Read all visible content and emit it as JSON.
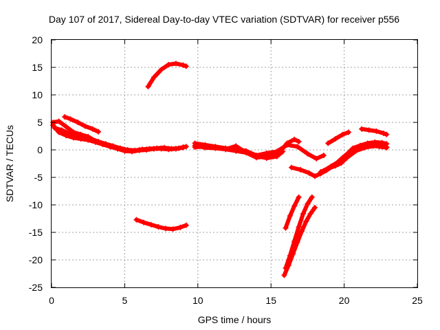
{
  "chart_data": {
    "type": "line",
    "title": "Day 107 of 2017, Sidereal Day-to-day VTEC variation (SDTVAR) for receiver p556",
    "xlabel": "GPS time / hours",
    "ylabel": "SDTVAR / TECUs",
    "xlim": [
      0,
      25
    ],
    "ylim": [
      -25,
      20
    ],
    "xticks": [
      "0",
      "5",
      "10",
      "15",
      "20",
      "25"
    ],
    "yticks": [
      "-25",
      "-20",
      "-15",
      "-10",
      "-5",
      "0",
      "5",
      "10",
      "15",
      "20"
    ],
    "grid": true,
    "color": "#ff0000",
    "series": [
      {
        "x": [
          0.1,
          0.5,
          1.0,
          1.5,
          2.0,
          2.5,
          3.0,
          3.5,
          4.0,
          4.5,
          5.0,
          5.5,
          6.0,
          6.5,
          7.0,
          7.5,
          8.0,
          8.5,
          9.0
        ],
        "y": [
          4.5,
          3.2,
          2.6,
          2.2,
          2.0,
          1.8,
          1.4,
          1.0,
          0.6,
          0.2,
          -0.2,
          -0.3,
          -0.1,
          0.0,
          0.2,
          0.3,
          0.2,
          0.2,
          0.4
        ]
      },
      {
        "x": [
          0.1,
          0.5,
          1.0,
          1.5,
          2.0,
          2.5,
          3.0,
          3.5,
          4.0,
          4.5,
          5.0,
          5.5,
          6.0,
          6.5,
          7.0,
          7.5,
          8.0,
          8.5,
          9.0
        ],
        "y": [
          5.0,
          5.2,
          4.2,
          3.2,
          2.8,
          2.4,
          1.6,
          1.0,
          0.6,
          0.2,
          -0.1,
          -0.2,
          0.0,
          0.1,
          0.2,
          0.2,
          0.1,
          0.2,
          0.5
        ]
      },
      {
        "x": [
          0.2,
          0.7,
          1.2,
          1.7,
          2.2,
          2.7,
          3.2,
          3.7,
          4.2,
          4.7,
          5.2,
          5.7,
          6.2,
          6.7,
          7.2,
          7.7,
          8.2,
          8.7,
          9.2
        ],
        "y": [
          4.0,
          3.6,
          3.0,
          2.6,
          2.3,
          2.0,
          1.5,
          1.1,
          0.7,
          0.3,
          0.0,
          -0.1,
          0.1,
          0.2,
          0.3,
          0.4,
          0.2,
          0.3,
          0.6
        ]
      },
      {
        "x": [
          0.9,
          1.3,
          1.8,
          2.3,
          2.8,
          3.2
        ],
        "y": [
          6.0,
          5.6,
          5.0,
          4.3,
          3.8,
          3.3
        ]
      },
      {
        "x": [
          6.6,
          7.0,
          7.5,
          8.0,
          8.5,
          9.0,
          9.2
        ],
        "y": [
          11.5,
          13.2,
          14.6,
          15.5,
          15.7,
          15.4,
          15.2
        ]
      },
      {
        "x": [
          5.8,
          6.3,
          6.8,
          7.3,
          7.8,
          8.3,
          8.8,
          9.2
        ],
        "y": [
          -12.7,
          -13.2,
          -13.6,
          -14.0,
          -14.3,
          -14.4,
          -14.1,
          -13.7
        ]
      },
      {
        "x": [
          9.8,
          10.5,
          11.2,
          11.9,
          12.6,
          13.3,
          14.0,
          14.7,
          15.4,
          16.1,
          16.8,
          17.5,
          18.1,
          18.6
        ],
        "y": [
          1.2,
          0.9,
          0.6,
          0.3,
          0.2,
          -0.2,
          -1.0,
          -0.6,
          -0.3,
          0.9,
          0.6,
          -0.7,
          -1.6,
          -1.0
        ]
      },
      {
        "x": [
          9.8,
          10.5,
          11.2,
          11.9,
          12.6,
          13.3,
          14.0,
          14.7,
          15.4,
          16.1,
          16.6,
          16.9
        ],
        "y": [
          0.5,
          0.6,
          0.4,
          0.1,
          0.7,
          -0.5,
          -1.4,
          -1.2,
          -1.0,
          1.2,
          1.9,
          1.5
        ]
      },
      {
        "x": [
          9.8,
          10.5,
          11.2,
          11.9,
          12.6,
          13.3,
          14.0,
          14.7,
          15.4,
          15.8
        ],
        "y": [
          0.8,
          0.4,
          0.3,
          0.1,
          -0.2,
          -0.5,
          -1.1,
          -1.5,
          -1.2,
          -0.3
        ]
      },
      {
        "x": [
          16.4,
          17.0,
          17.6,
          18.0,
          18.4,
          18.8,
          19.2,
          19.6,
          20.0
        ],
        "y": [
          -3.2,
          -3.6,
          -4.2,
          -4.8,
          -4.3,
          -3.7,
          -3.0,
          -2.6,
          -1.8
        ]
      },
      {
        "x": [
          18.4,
          18.9,
          19.4,
          19.8,
          20.2,
          20.8,
          21.4,
          22.0,
          22.6,
          22.9
        ],
        "y": [
          -4.0,
          -3.4,
          -2.9,
          -2.4,
          -1.4,
          -0.2,
          0.4,
          0.7,
          0.6,
          0.5
        ]
      },
      {
        "x": [
          18.6,
          19.1,
          19.6,
          20.1,
          20.6,
          21.1,
          21.6,
          22.1,
          22.6,
          22.9
        ],
        "y": [
          -3.8,
          -3.0,
          -2.2,
          -1.0,
          0.3,
          0.8,
          1.2,
          1.4,
          1.3,
          1.1
        ]
      },
      {
        "x": [
          19.4,
          19.9,
          20.4,
          20.9,
          21.4,
          21.9,
          22.4,
          22.9
        ],
        "y": [
          -2.6,
          -1.4,
          -0.4,
          0.4,
          0.8,
          0.8,
          0.6,
          0.4
        ]
      },
      {
        "x": [
          18.9,
          19.4,
          19.9,
          20.3
        ],
        "y": [
          1.2,
          2.0,
          2.8,
          3.2
        ]
      },
      {
        "x": [
          21.2,
          21.7,
          22.2,
          22.7,
          22.9
        ],
        "y": [
          3.8,
          3.6,
          3.4,
          3.0,
          2.8
        ]
      },
      {
        "x": [
          16.0,
          16.3,
          16.6,
          16.9
        ],
        "y": [
          -14.2,
          -12.0,
          -10.2,
          -8.6
        ]
      },
      {
        "x": [
          15.9,
          16.2,
          16.5,
          16.8,
          17.1,
          17.4,
          17.7,
          18.0
        ],
        "y": [
          -22.8,
          -21.0,
          -18.9,
          -16.8,
          -14.8,
          -13.0,
          -11.6,
          -10.5
        ]
      },
      {
        "x": [
          16.0,
          16.3,
          16.6,
          16.9,
          17.2,
          17.5,
          17.8
        ],
        "y": [
          -21.5,
          -19.2,
          -16.6,
          -14.0,
          -11.6,
          -9.8,
          -8.6
        ]
      }
    ]
  }
}
